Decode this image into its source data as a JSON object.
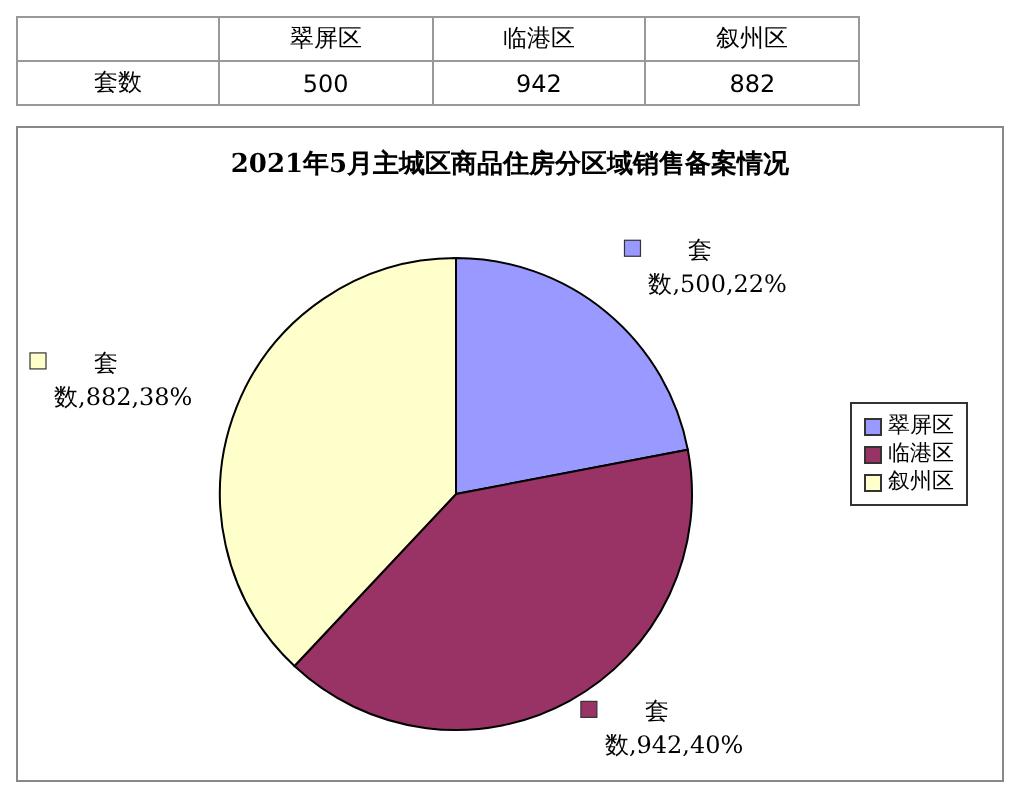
{
  "chart_data": [
    {
      "type": "other",
      "categories": [
        "翠屏区",
        "临港区",
        "叙州区"
      ],
      "series": [
        {
          "name": "套数",
          "values": [
            500,
            942,
            882
          ]
        }
      ],
      "data_labels": true
    },
    {
      "type": "pie",
      "title": "2021年5月主城区商品住房分区域销售备案情况",
      "categories": [
        "翠屏区",
        "临港区",
        "叙州区"
      ],
      "colors": [
        "#9999ff",
        "#993366",
        "#ffffcc"
      ],
      "values": [
        22,
        40,
        38
      ],
      "annotations": [
        {
          "text": "套数,500,22%",
          "x": "翠屏区"
        },
        {
          "text": "套数,942,40%",
          "x": "临港区"
        },
        {
          "text": "套数,882,38%",
          "x": "叙州区"
        }
      ],
      "legend": "right"
    }
  ]
}
